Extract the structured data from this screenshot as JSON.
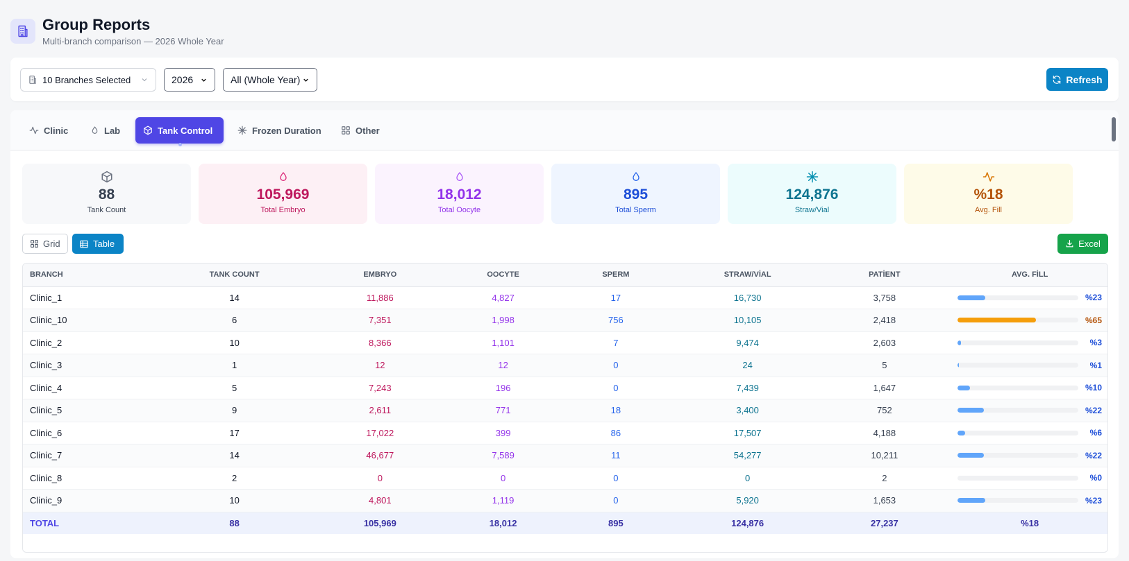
{
  "header": {
    "title": "Group Reports",
    "subtitle": "Multi-branch comparison — 2026 Whole Year"
  },
  "filters": {
    "branches_label": "10 Branches Selected",
    "year_value": "2026",
    "period_value": "All (Whole Year)",
    "refresh_label": "Refresh"
  },
  "tabs": [
    {
      "label": "Clinic",
      "icon": "activity-icon"
    },
    {
      "label": "Lab",
      "icon": "drop-icon"
    },
    {
      "label": "Tank Control",
      "icon": "box-icon",
      "active": true
    },
    {
      "label": "Frozen Duration",
      "icon": "snowflake-icon"
    },
    {
      "label": "Other",
      "icon": "grid-icon"
    }
  ],
  "stats": [
    {
      "value": "88",
      "label": "Tank Count",
      "icon": "box-icon",
      "color": "#374151",
      "bg": "#f7f8fa"
    },
    {
      "value": "105,969",
      "label": "Total Embryo",
      "icon": "drop-icon",
      "color": "#be185d",
      "bg": "#fdf0f5"
    },
    {
      "value": "18,012",
      "label": "Total Oocyte",
      "icon": "drop-icon",
      "color": "#9333ea",
      "bg": "#fbf3fe"
    },
    {
      "value": "895",
      "label": "Total Sperm",
      "icon": "drop-icon",
      "color": "#1d4ed8",
      "bg": "#eff5ff"
    },
    {
      "value": "124,876",
      "label": "Straw/Vial",
      "icon": "snowflake-icon",
      "color": "#0e7490",
      "bg": "#ecfcfd"
    },
    {
      "value": "%18",
      "label": "Avg. Fill",
      "icon": "activity-icon",
      "color": "#b45309",
      "bg": "#fefbe8"
    }
  ],
  "view": {
    "grid_label": "Grid",
    "table_label": "Table",
    "excel_label": "Excel"
  },
  "table": {
    "columns": [
      "BRANCH",
      "TANK COUNT",
      "EMBRYO",
      "OOCYTE",
      "SPERM",
      "STRAW/VİAL",
      "PATİENT",
      "AVG. FİLL"
    ],
    "rows": [
      {
        "branch": "Clinic_1",
        "tank": "14",
        "embryo": "11,886",
        "oocyte": "4,827",
        "sperm": "17",
        "straw": "16,730",
        "patient": "3,758",
        "fill": 23,
        "fill_label": "%23"
      },
      {
        "branch": "Clinic_10",
        "tank": "6",
        "embryo": "7,351",
        "oocyte": "1,998",
        "sperm": "756",
        "straw": "10,105",
        "patient": "2,418",
        "fill": 65,
        "fill_label": "%65"
      },
      {
        "branch": "Clinic_2",
        "tank": "10",
        "embryo": "8,366",
        "oocyte": "1,101",
        "sperm": "7",
        "straw": "9,474",
        "patient": "2,603",
        "fill": 3,
        "fill_label": "%3"
      },
      {
        "branch": "Clinic_3",
        "tank": "1",
        "embryo": "12",
        "oocyte": "12",
        "sperm": "0",
        "straw": "24",
        "patient": "5",
        "fill": 1,
        "fill_label": "%1"
      },
      {
        "branch": "Clinic_4",
        "tank": "5",
        "embryo": "7,243",
        "oocyte": "196",
        "sperm": "0",
        "straw": "7,439",
        "patient": "1,647",
        "fill": 10,
        "fill_label": "%10"
      },
      {
        "branch": "Clinic_5",
        "tank": "9",
        "embryo": "2,611",
        "oocyte": "771",
        "sperm": "18",
        "straw": "3,400",
        "patient": "752",
        "fill": 22,
        "fill_label": "%22"
      },
      {
        "branch": "Clinic_6",
        "tank": "17",
        "embryo": "17,022",
        "oocyte": "399",
        "sperm": "86",
        "straw": "17,507",
        "patient": "4,188",
        "fill": 6,
        "fill_label": "%6"
      },
      {
        "branch": "Clinic_7",
        "tank": "14",
        "embryo": "46,677",
        "oocyte": "7,589",
        "sperm": "11",
        "straw": "54,277",
        "patient": "10,211",
        "fill": 22,
        "fill_label": "%22"
      },
      {
        "branch": "Clinic_8",
        "tank": "2",
        "embryo": "0",
        "oocyte": "0",
        "sperm": "0",
        "straw": "0",
        "patient": "2",
        "fill": 0,
        "fill_label": "%0"
      },
      {
        "branch": "Clinic_9",
        "tank": "10",
        "embryo": "4,801",
        "oocyte": "1,119",
        "sperm": "0",
        "straw": "5,920",
        "patient": "1,653",
        "fill": 23,
        "fill_label": "%23"
      }
    ],
    "total": {
      "branch": "TOTAL",
      "tank": "88",
      "embryo": "105,969",
      "oocyte": "18,012",
      "sperm": "895",
      "straw": "124,876",
      "patient": "27,237",
      "fill_label": "%18"
    }
  }
}
